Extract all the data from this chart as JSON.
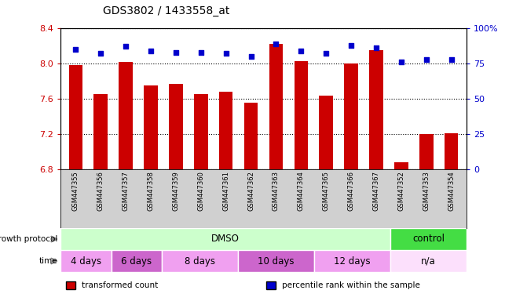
{
  "title": "GDS3802 / 1433558_at",
  "samples": [
    "GSM447355",
    "GSM447356",
    "GSM447357",
    "GSM447358",
    "GSM447359",
    "GSM447360",
    "GSM447361",
    "GSM447362",
    "GSM447363",
    "GSM447364",
    "GSM447365",
    "GSM447366",
    "GSM447367",
    "GSM447352",
    "GSM447353",
    "GSM447354"
  ],
  "bar_values": [
    7.98,
    7.65,
    8.02,
    7.75,
    7.77,
    7.65,
    7.68,
    7.56,
    8.22,
    8.03,
    7.64,
    8.0,
    8.15,
    6.88,
    7.2,
    7.21
  ],
  "bar_base": 6.8,
  "percentile_values": [
    85,
    82,
    87,
    84,
    83,
    83,
    82,
    80,
    89,
    84,
    82,
    88,
    86,
    76,
    78,
    78
  ],
  "ylim_left": [
    6.8,
    8.4
  ],
  "ylim_right": [
    0,
    100
  ],
  "yticks_left": [
    6.8,
    7.2,
    7.6,
    8.0,
    8.4
  ],
  "yticks_right": [
    0,
    25,
    50,
    75,
    100
  ],
  "ytick_labels_right": [
    "0",
    "25",
    "50",
    "75",
    "100%"
  ],
  "bar_color": "#cc0000",
  "percentile_color": "#0000cc",
  "tick_color_left": "#cc0000",
  "tick_color_right": "#0000cc",
  "sample_bg_color": "#d0d0d0",
  "growth_protocol_groups": [
    {
      "label": "DMSO",
      "start": 0,
      "end": 13,
      "color": "#ccffcc"
    },
    {
      "label": "control",
      "start": 13,
      "end": 16,
      "color": "#44dd44"
    }
  ],
  "time_groups": [
    {
      "label": "4 days",
      "start": 0,
      "end": 2,
      "color": "#f0a0f0"
    },
    {
      "label": "6 days",
      "start": 2,
      "end": 4,
      "color": "#cc66cc"
    },
    {
      "label": "8 days",
      "start": 4,
      "end": 7,
      "color": "#f0a0f0"
    },
    {
      "label": "10 days",
      "start": 7,
      "end": 10,
      "color": "#cc66cc"
    },
    {
      "label": "12 days",
      "start": 10,
      "end": 13,
      "color": "#f0a0f0"
    },
    {
      "label": "n/a",
      "start": 13,
      "end": 16,
      "color": "#fce0fc"
    }
  ],
  "growth_protocol_label": "growth protocol",
  "time_label": "time",
  "legend_items": [
    {
      "label": "transformed count",
      "color": "#cc0000"
    },
    {
      "label": "percentile rank within the sample",
      "color": "#0000cc"
    }
  ]
}
